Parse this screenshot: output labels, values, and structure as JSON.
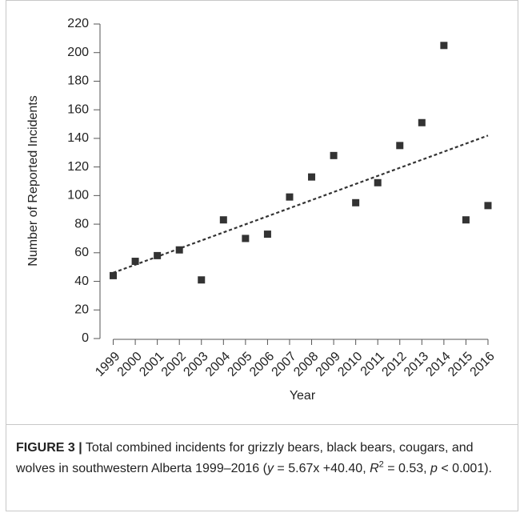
{
  "chart_data": {
    "type": "scatter",
    "ylabel": "Number of Reported Incidents",
    "xlabel": "Year",
    "x": [
      1999,
      2000,
      2001,
      2002,
      2003,
      2004,
      2005,
      2006,
      2007,
      2008,
      2009,
      2010,
      2011,
      2012,
      2013,
      2014,
      2015,
      2016
    ],
    "values": [
      44,
      54,
      58,
      62,
      41,
      83,
      70,
      73,
      99,
      113,
      128,
      95,
      109,
      135,
      151,
      205,
      83,
      93
    ],
    "color": "#333333",
    "trendline": {
      "x": [
        1999,
        2016
      ],
      "values": [
        46,
        142
      ],
      "color": "#333333",
      "dashed": true
    },
    "xlim": [
      1998.4,
      2016.4
    ],
    "xticks": [
      1999,
      2000,
      2001,
      2002,
      2003,
      2004,
      2005,
      2006,
      2007,
      2008,
      2009,
      2010,
      2011,
      2012,
      2013,
      2014,
      2015,
      2016
    ],
    "ylim": [
      0,
      220
    ],
    "yticks": [
      0,
      20,
      40,
      60,
      80,
      100,
      120,
      140,
      160,
      180,
      200,
      220
    ]
  },
  "caption": [
    {
      "text": "FIGURE 3 |",
      "style": "bold"
    },
    {
      "text": " Total combined incidents for grizzly bears, black bears, cougars, and wolves in southwestern Alberta 1999–2016 (",
      "style": "normal"
    },
    {
      "text": "y",
      "style": "italic"
    },
    {
      "text": " = 5.67x +40.40, ",
      "style": "normal"
    },
    {
      "text": "R",
      "style": "italic"
    },
    {
      "text": "2",
      "style": "sup"
    },
    {
      "text": " = 0.53, ",
      "style": "normal"
    },
    {
      "text": "p",
      "style": "italic"
    },
    {
      "text": " < 0.001).",
      "style": "normal"
    }
  ]
}
